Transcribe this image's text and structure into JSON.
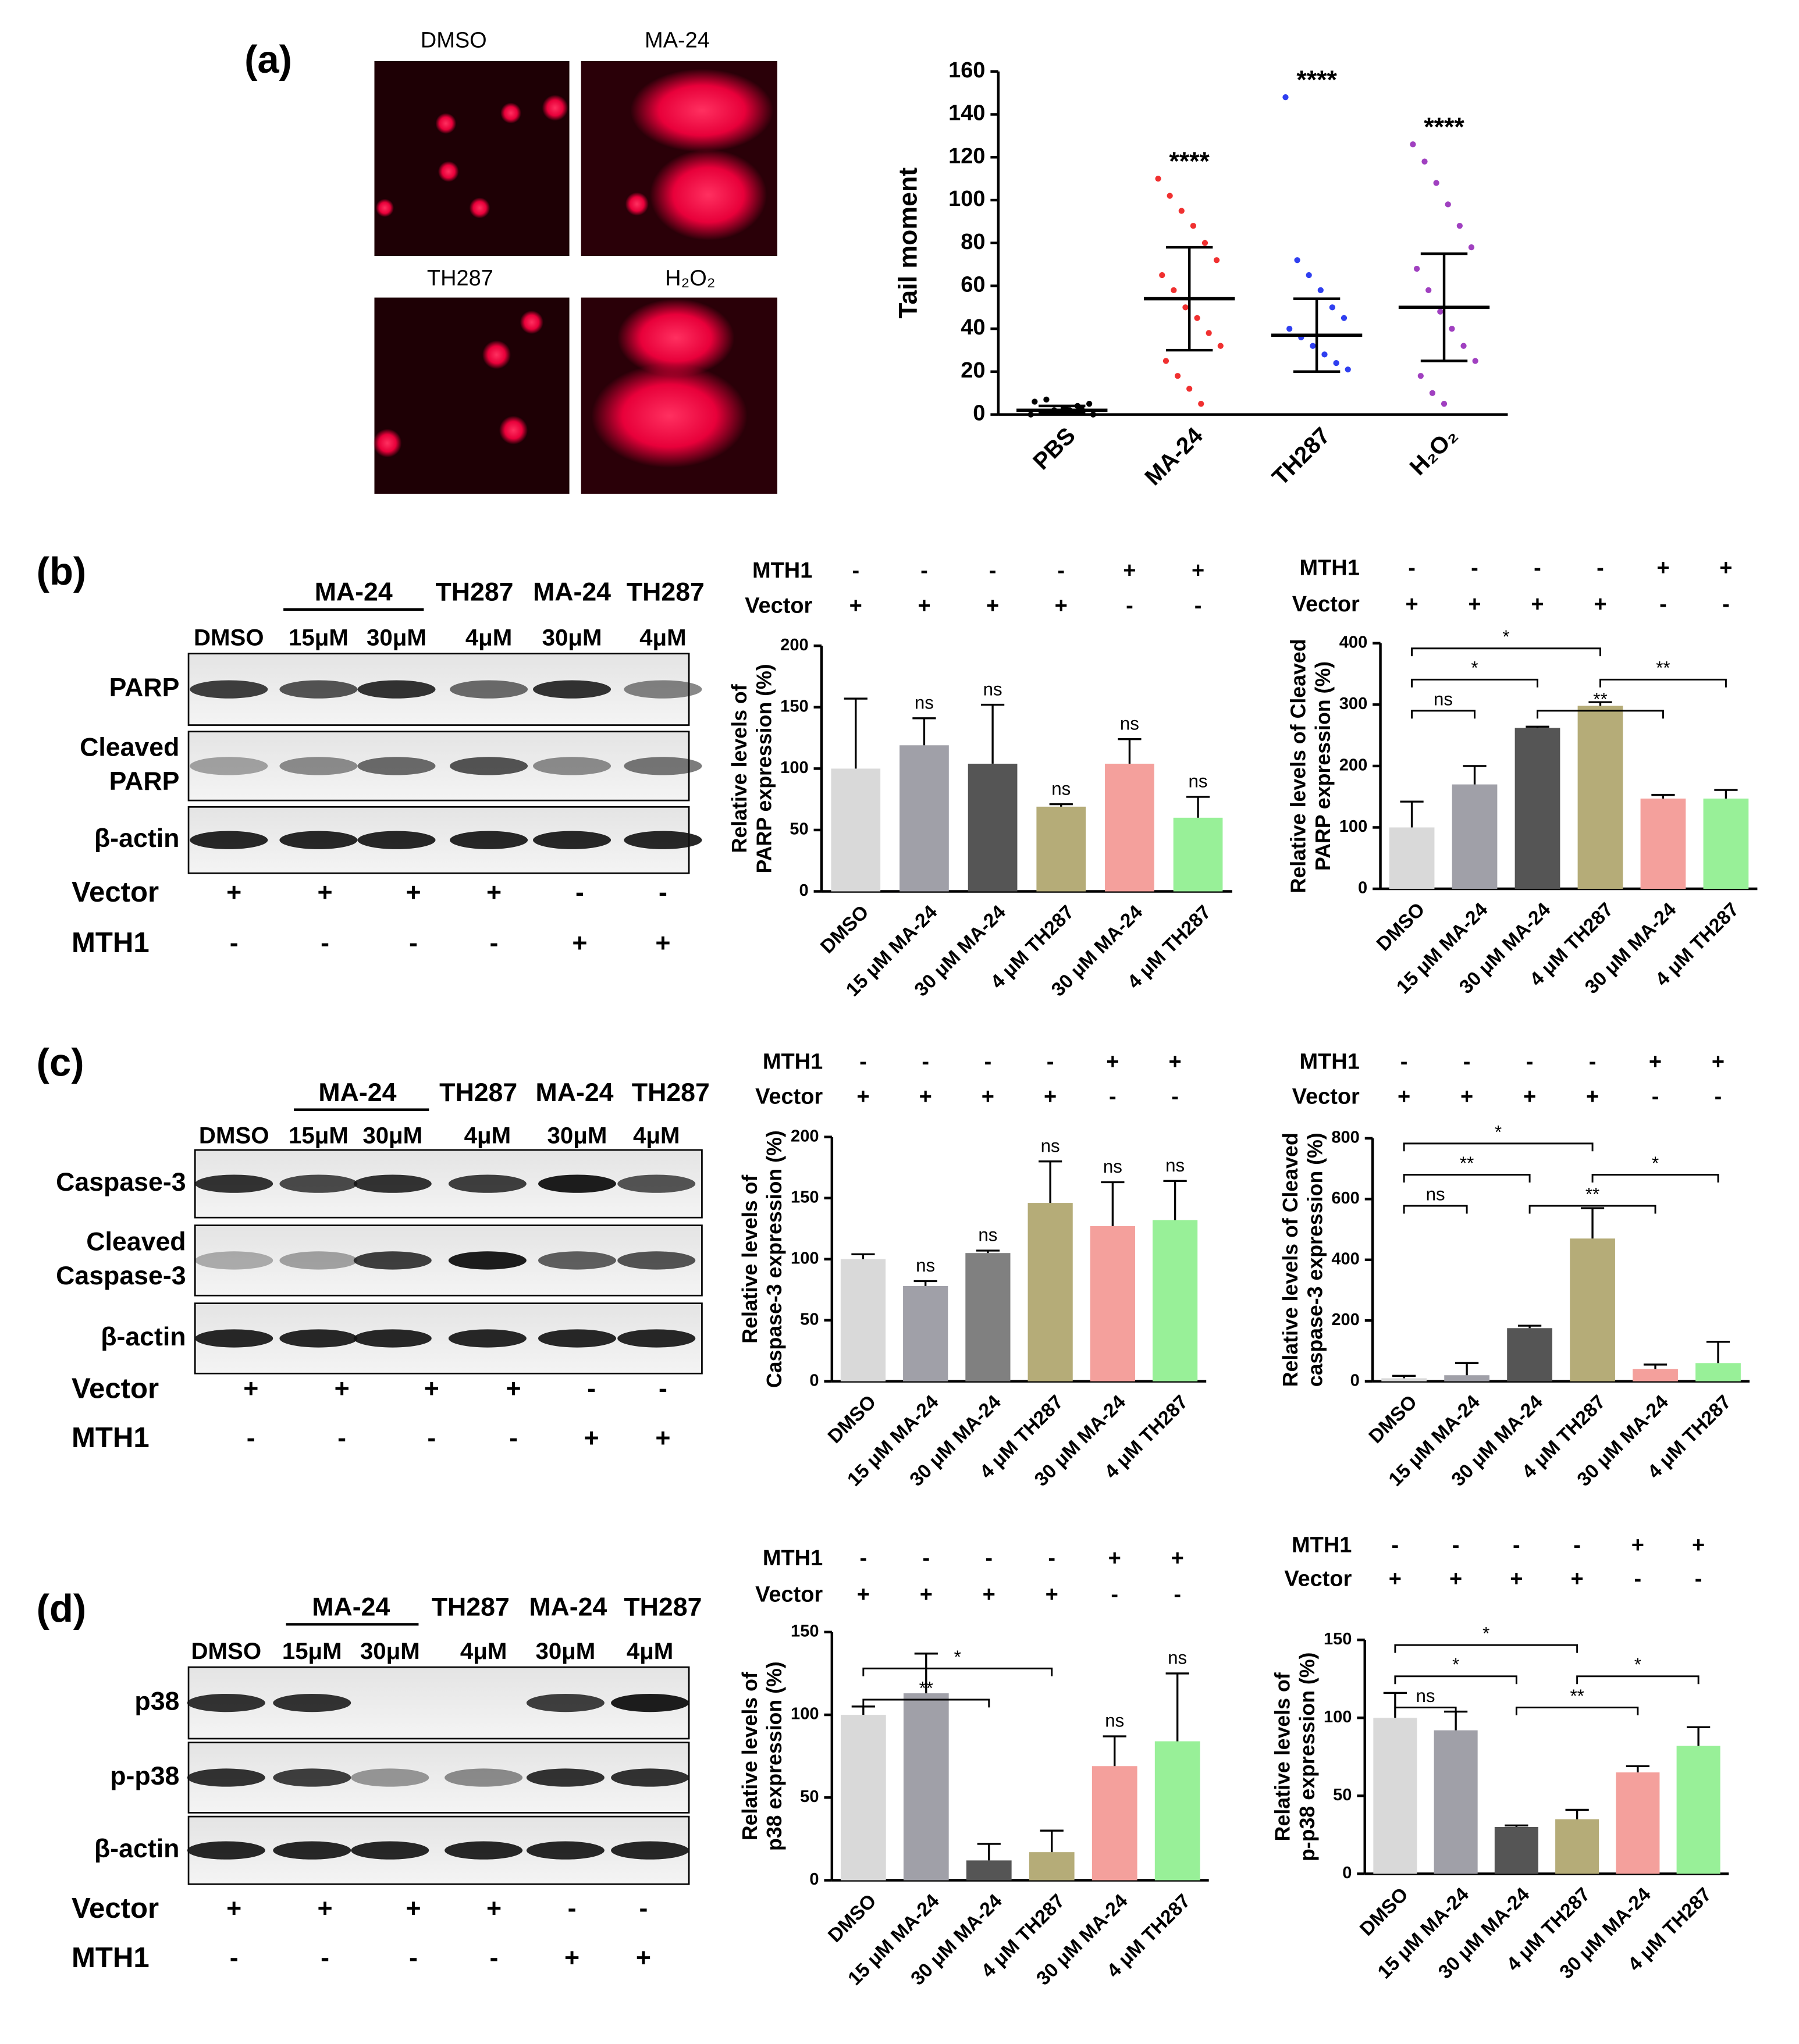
{
  "panel_labels": [
    "(a)",
    "(b)",
    "(c)",
    "(d)"
  ],
  "comet_images": [
    "DMSO",
    "MA-24",
    "TH287",
    "H₂O₂"
  ],
  "blots": [
    {
      "groups": [
        "MA-24",
        "TH287",
        "MA-24",
        "TH287"
      ],
      "lanes": [
        "DMSO",
        "15μM",
        "30μM",
        "4μM",
        "30μM",
        "4μM"
      ],
      "rows": [
        [
          "PARP"
        ],
        [
          "Cleaved",
          "PARP"
        ],
        [
          "β-actin"
        ]
      ],
      "conditions": [
        {
          "name": "Vector",
          "signs": [
            "+",
            "+",
            "+",
            "+",
            "-",
            "-"
          ]
        },
        {
          "name": "MTH1",
          "signs": [
            "-",
            "-",
            "-",
            "-",
            "+",
            "+"
          ]
        }
      ]
    },
    {
      "groups": [
        "MA-24",
        "TH287",
        "MA-24",
        "TH287"
      ],
      "lanes": [
        "DMSO",
        "15μM",
        "30μM",
        "4μM",
        "30μM",
        "4μM"
      ],
      "rows": [
        [
          "Caspase-3"
        ],
        [
          "Cleaved",
          "Caspase-3"
        ],
        [
          "β-actin"
        ]
      ],
      "conditions": [
        {
          "name": "Vector",
          "signs": [
            "+",
            "+",
            "+",
            "+",
            "-",
            "-"
          ]
        },
        {
          "name": "MTH1",
          "signs": [
            "-",
            "-",
            "-",
            "-",
            "+",
            "+"
          ]
        }
      ]
    },
    {
      "groups": [
        "MA-24",
        "TH287",
        "MA-24",
        "TH287"
      ],
      "lanes": [
        "DMSO",
        "15μM",
        "30μM",
        "4μM",
        "30μM",
        "4μM"
      ],
      "rows": [
        [
          "p38"
        ],
        [
          "p-p38"
        ],
        [
          "β-actin"
        ]
      ],
      "conditions": [
        {
          "name": "Vector",
          "signs": [
            "+",
            "+",
            "+",
            "+",
            "-",
            "-"
          ]
        },
        {
          "name": "MTH1",
          "signs": [
            "-",
            "-",
            "-",
            "-",
            "+",
            "+"
          ]
        }
      ]
    }
  ],
  "chart_data": [
    {
      "type": "scatter",
      "ylabel": "Tail moment",
      "categories": [
        "PBS",
        "MA-24",
        "TH287",
        "H₂O₂"
      ],
      "colors": [
        "#000000",
        "#f03030",
        "#2f3ff0",
        "#a040c0"
      ],
      "points": [
        [
          0,
          1,
          2,
          3,
          4,
          5,
          6,
          7,
          1,
          2,
          3,
          0
        ],
        [
          110,
          102,
          95,
          88,
          80,
          72,
          65,
          58,
          50,
          45,
          38,
          32,
          25,
          18,
          12,
          5
        ],
        [
          148,
          72,
          65,
          58,
          50,
          45,
          40,
          36,
          32,
          28,
          24,
          21
        ],
        [
          126,
          118,
          108,
          98,
          88,
          78,
          68,
          58,
          48,
          40,
          32,
          25,
          18,
          10,
          5
        ]
      ],
      "mean": [
        2,
        54,
        37,
        50
      ],
      "sd_low": [
        1,
        30,
        20,
        25
      ],
      "sd_high": [
        4,
        78,
        54,
        75
      ],
      "annotations": [
        null,
        "****",
        "****",
        "****"
      ],
      "ylim": [
        0,
        160
      ],
      "yticks": [
        0,
        20,
        40,
        60,
        80,
        100,
        120,
        140,
        160
      ]
    },
    {
      "type": "bar",
      "ylabel": [
        "Relative levels of",
        "PARP expression (%)"
      ],
      "categories": [
        "DMSO",
        "15 μM MA-24",
        "30 μM MA-24",
        "4 μM TH287",
        "30 μM MA-24",
        "4 μM TH287"
      ],
      "values": [
        100,
        119,
        104,
        69,
        104,
        60
      ],
      "errors": [
        57,
        22,
        48,
        2,
        20,
        17
      ],
      "colors": [
        "#d9d9d9",
        "#a0a0a8",
        "#555555",
        "#b5ac78",
        "#f4a09c",
        "#98f098"
      ],
      "annotations": [
        null,
        "ns",
        "ns",
        "ns",
        "ns",
        "ns"
      ],
      "ylim": [
        0,
        200
      ],
      "yticks": [
        0,
        50,
        100,
        150,
        200
      ],
      "conditions": [
        {
          "name": "MTH1",
          "signs": [
            "-",
            "-",
            "-",
            "-",
            "+",
            "+"
          ]
        },
        {
          "name": "Vector",
          "signs": [
            "+",
            "+",
            "+",
            "+",
            "-",
            "-"
          ]
        }
      ]
    },
    {
      "type": "bar",
      "ylabel": [
        "Relative levels of Cleaved",
        "PARP expression (%)"
      ],
      "categories": [
        "DMSO",
        "15 μM MA-24",
        "30 μM MA-24",
        "4 μM TH287",
        "30 μM MA-24",
        "4 μM TH287"
      ],
      "values": [
        100,
        170,
        262,
        298,
        147,
        147
      ],
      "errors": [
        42,
        30,
        2,
        6,
        6,
        14
      ],
      "colors": [
        "#d9d9d9",
        "#a0a0a8",
        "#555555",
        "#b5ac78",
        "#f4a09c",
        "#98f098"
      ],
      "ylim": [
        0,
        400
      ],
      "yticks": [
        0,
        100,
        200,
        300,
        400
      ],
      "brackets": [
        {
          "from": 0,
          "to": 1,
          "label": "ns"
        },
        {
          "from": 0,
          "to": 2,
          "label": "*"
        },
        {
          "from": 2,
          "to": 4,
          "label": "**"
        },
        {
          "from": 0,
          "to": 3,
          "label": "*"
        },
        {
          "from": 3,
          "to": 5,
          "label": "**"
        }
      ],
      "conditions": [
        {
          "name": "MTH1",
          "signs": [
            "-",
            "-",
            "-",
            "-",
            "+",
            "+"
          ]
        },
        {
          "name": "Vector",
          "signs": [
            "+",
            "+",
            "+",
            "+",
            "-",
            "-"
          ]
        }
      ]
    },
    {
      "type": "bar",
      "ylabel": [
        "Relative levels of",
        "Caspase-3 expression (%)"
      ],
      "categories": [
        "DMSO",
        "15 μM MA-24",
        "30 μM MA-24",
        "4 μM TH287",
        "30 μM MA-24",
        "4 μM TH287"
      ],
      "values": [
        100,
        78,
        105,
        146,
        127,
        132
      ],
      "errors": [
        4,
        4,
        2,
        34,
        36,
        32
      ],
      "colors": [
        "#d9d9d9",
        "#a0a0a8",
        "#808080",
        "#b5ac78",
        "#f4a09c",
        "#98f098"
      ],
      "annotations": [
        null,
        "ns",
        "ns",
        "ns",
        "ns",
        "ns"
      ],
      "ylim": [
        0,
        200
      ],
      "yticks": [
        0,
        50,
        100,
        150,
        200
      ],
      "conditions": [
        {
          "name": "MTH1",
          "signs": [
            "-",
            "-",
            "-",
            "-",
            "+",
            "+"
          ]
        },
        {
          "name": "Vector",
          "signs": [
            "+",
            "+",
            "+",
            "+",
            "-",
            "-"
          ]
        }
      ]
    },
    {
      "type": "bar",
      "ylabel": [
        "Relative levels of Cleaved",
        "caspase-3 expression (%)"
      ],
      "categories": [
        "DMSO",
        "15 μM MA-24",
        "30 μM MA-24",
        "4 μM TH287",
        "30 μM MA-24",
        "4 μM TH287"
      ],
      "values": [
        10,
        20,
        175,
        470,
        40,
        60
      ],
      "errors": [
        8,
        40,
        8,
        100,
        15,
        70
      ],
      "colors": [
        "#d9d9d9",
        "#a0a0a8",
        "#555555",
        "#b5ac78",
        "#f4a09c",
        "#98f098"
      ],
      "ylim": [
        0,
        800
      ],
      "yticks": [
        0,
        200,
        400,
        600,
        800
      ],
      "brackets": [
        {
          "from": 0,
          "to": 1,
          "label": "ns"
        },
        {
          "from": 0,
          "to": 2,
          "label": "**"
        },
        {
          "from": 2,
          "to": 4,
          "label": "**"
        },
        {
          "from": 0,
          "to": 3,
          "label": "*"
        },
        {
          "from": 3,
          "to": 5,
          "label": "*"
        }
      ],
      "conditions": [
        {
          "name": "MTH1",
          "signs": [
            "-",
            "-",
            "-",
            "-",
            "+",
            "+"
          ]
        },
        {
          "name": "Vector",
          "signs": [
            "+",
            "+",
            "+",
            "+",
            "-",
            "-"
          ]
        }
      ]
    },
    {
      "type": "bar",
      "ylabel": [
        "Relative levels of",
        "p38 expression (%)"
      ],
      "categories": [
        "DMSO",
        "15 μM MA-24",
        "30 μM MA-24",
        "4 μM TH287",
        "30 μM MA-24",
        "4 μM TH287"
      ],
      "values": [
        100,
        113,
        12,
        17,
        69,
        84
      ],
      "errors": [
        5,
        24,
        10,
        13,
        18,
        41
      ],
      "colors": [
        "#d9d9d9",
        "#a0a0a8",
        "#555555",
        "#b5ac78",
        "#f4a09c",
        "#98f098"
      ],
      "annotations": [
        null,
        null,
        null,
        null,
        "ns",
        "ns"
      ],
      "ylim": [
        0,
        150
      ],
      "yticks": [
        0,
        50,
        100,
        150
      ],
      "brackets": [
        {
          "from": 0,
          "to": 2,
          "label": "**"
        },
        {
          "from": 0,
          "to": 3,
          "label": "*"
        }
      ],
      "conditions": [
        {
          "name": "MTH1",
          "signs": [
            "-",
            "-",
            "-",
            "-",
            "+",
            "+"
          ]
        },
        {
          "name": "Vector",
          "signs": [
            "+",
            "+",
            "+",
            "+",
            "-",
            "-"
          ]
        }
      ]
    },
    {
      "type": "bar",
      "ylabel": [
        "Relative levels of",
        "p-p38 expression (%)"
      ],
      "categories": [
        "DMSO",
        "15 μM MA-24",
        "30 μM MA-24",
        "4 μM TH287",
        "30 μM MA-24",
        "4 μM TH287"
      ],
      "values": [
        100,
        92,
        30,
        35,
        65,
        82
      ],
      "errors": [
        16,
        12,
        1,
        6,
        4,
        12
      ],
      "colors": [
        "#d9d9d9",
        "#a0a0a8",
        "#555555",
        "#b5ac78",
        "#f4a09c",
        "#98f098"
      ],
      "ylim": [
        0,
        150
      ],
      "yticks": [
        0,
        50,
        100,
        150
      ],
      "brackets": [
        {
          "from": 0,
          "to": 1,
          "label": "ns"
        },
        {
          "from": 0,
          "to": 2,
          "label": "*"
        },
        {
          "from": 2,
          "to": 4,
          "label": "**"
        },
        {
          "from": 0,
          "to": 3,
          "label": "*"
        },
        {
          "from": 3,
          "to": 5,
          "label": "*"
        }
      ],
      "conditions": [
        {
          "name": "MTH1",
          "signs": [
            "-",
            "-",
            "-",
            "-",
            "+",
            "+"
          ]
        },
        {
          "name": "Vector",
          "signs": [
            "+",
            "+",
            "+",
            "+",
            "-",
            "-"
          ]
        }
      ]
    }
  ]
}
